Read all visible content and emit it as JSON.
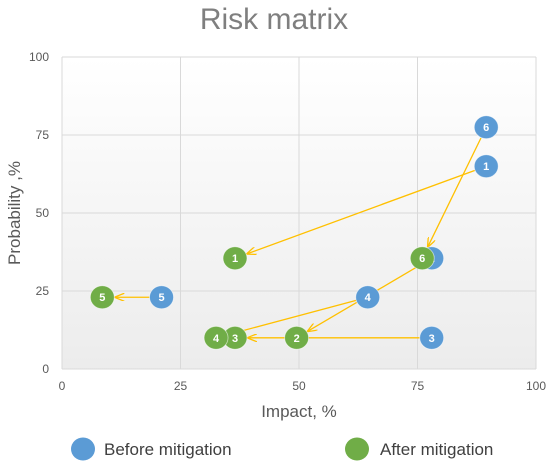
{
  "chart_data": {
    "type": "scatter",
    "title": "Risk matrix",
    "xlabel": "Impact, %",
    "ylabel": "Probability ,%",
    "xlim": [
      0,
      100
    ],
    "ylim": [
      0,
      100
    ],
    "xticks": [
      "0",
      "25",
      "50",
      "75",
      "100"
    ],
    "yticks": [
      "0",
      "25",
      "50",
      "75",
      "100"
    ],
    "grid": true,
    "legend_position": "bottom",
    "series": [
      {
        "name": "Before mitigation",
        "color": "#5b9bd5",
        "points": [
          {
            "label": "1",
            "x": 89.5,
            "y": 65
          },
          {
            "label": "2",
            "x": 78,
            "y": 35.5
          },
          {
            "label": "3",
            "x": 78,
            "y": 10
          },
          {
            "label": "4",
            "x": 64.5,
            "y": 23
          },
          {
            "label": "5",
            "x": 21,
            "y": 23
          },
          {
            "label": "6",
            "x": 89.5,
            "y": 77.5
          }
        ]
      },
      {
        "name": "After mitigation",
        "color": "#70ad47",
        "points": [
          {
            "label": "1",
            "x": 36.5,
            "y": 35.5
          },
          {
            "label": "2",
            "x": 49.5,
            "y": 10
          },
          {
            "label": "3",
            "x": 36.5,
            "y": 10
          },
          {
            "label": "4",
            "x": 32.5,
            "y": 10
          },
          {
            "label": "5",
            "x": 8.5,
            "y": 23
          },
          {
            "label": "6",
            "x": 76,
            "y": 35.5
          }
        ]
      }
    ],
    "arrow_color": "#ffc000"
  }
}
